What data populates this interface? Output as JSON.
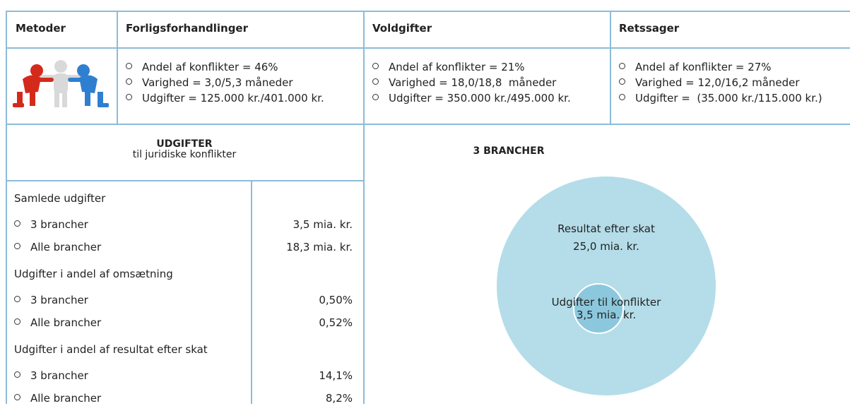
{
  "table": {
    "header": [
      "Metoder",
      "Forligsforhandlinger",
      "Voldgifter",
      "Retssager"
    ],
    "rows": [
      [
        "Andel af konflikter = 46%",
        "Varighed = 3,0/5,3 måneder",
        "Udgifter = 125.000 kr./401.000 kr."
      ],
      [
        "Andel af konflikter = 21%",
        "Varighed = 18,0/18,8  måneder",
        "Udgifter = 350.000 kr./495.000 kr."
      ],
      [
        "Andel af konflikter = 27%",
        "Varighed = 12,0/16,2 måneder",
        "Udgifter =  (35.000 kr./115.000 kr.)"
      ]
    ]
  },
  "expenses": {
    "title": "UDGIFTER",
    "subtitle": "til juridiske konflikter",
    "groups": [
      {
        "label": "Samlede udgifter",
        "items": [
          {
            "label": "3 brancher",
            "value": "3,5 mia. kr."
          },
          {
            "label": "Alle brancher",
            "value": "18,3 mia. kr."
          }
        ]
      },
      {
        "label": "Udgifter i andel af omsætning",
        "items": [
          {
            "label": "3 brancher",
            "value": "0,50%"
          },
          {
            "label": "Alle brancher",
            "value": "0,52%"
          }
        ]
      },
      {
        "label": "Udgifter i andel af resultat efter skat",
        "items": [
          {
            "label": "3 brancher",
            "value": "14,1%"
          },
          {
            "label": "Alle brancher",
            "value": "8,2%"
          }
        ]
      }
    ]
  },
  "circle": {
    "title": "3 BRANCHER",
    "outer_label": "Resultat efter skat",
    "outer_value": "25,0 mia. kr.",
    "inner_label": "Udgifter til konflikter",
    "inner_value": "3,5 mia. kr."
  }
}
